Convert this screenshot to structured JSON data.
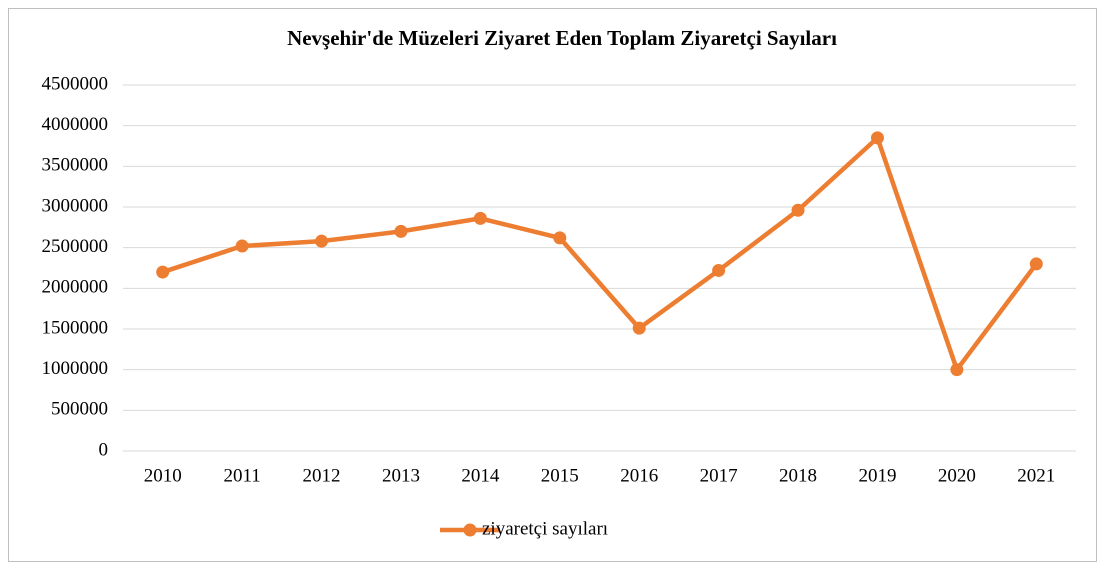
{
  "chart_data": {
    "type": "line",
    "title": "Nevşehir'de Müzeleri Ziyaret Eden Toplam Ziyaretçi Sayıları",
    "categories": [
      "2010",
      "2011",
      "2012",
      "2013",
      "2014",
      "2015",
      "2016",
      "2017",
      "2018",
      "2019",
      "2020",
      "2021"
    ],
    "series": [
      {
        "name": "ziyaretçi sayıları",
        "color": "#ed7d31",
        "values": [
          2200000,
          2520000,
          2580000,
          2700000,
          2860000,
          2620000,
          1510000,
          2220000,
          2960000,
          3850000,
          1000000,
          2300000
        ]
      }
    ],
    "ylim": [
      0,
      4500000
    ],
    "yticks": [
      0,
      500000,
      1000000,
      1500000,
      2000000,
      2500000,
      3000000,
      3500000,
      4000000,
      4500000
    ],
    "grid": true,
    "legend": "bottom"
  }
}
